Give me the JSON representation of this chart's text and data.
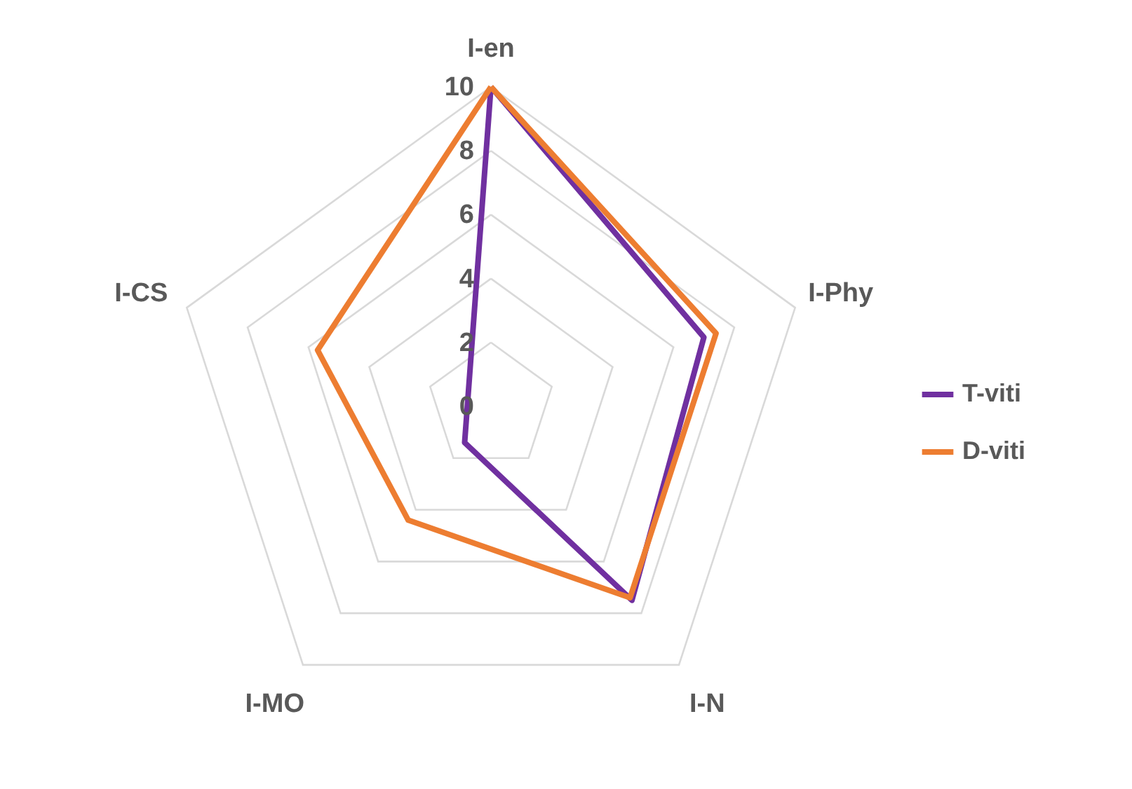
{
  "chart_data": {
    "type": "radar",
    "categories": [
      "I-en",
      "I-Phy",
      "I-N",
      "I-MO",
      "I-CS"
    ],
    "series": [
      {
        "name": "T-viti",
        "color": "#7030a0",
        "values": [
          10,
          7,
          7.5,
          1.4,
          null
        ]
      },
      {
        "name": "D-viti",
        "color": "#ed7d31",
        "values": [
          10,
          7.4,
          7.4,
          4.4,
          5.7
        ]
      }
    ],
    "ylim": [
      0,
      10
    ],
    "yticks": [
      0,
      2,
      4,
      6,
      8,
      10
    ],
    "grid": true,
    "legend": "right",
    "marker": "none",
    "line_style": "solid"
  }
}
